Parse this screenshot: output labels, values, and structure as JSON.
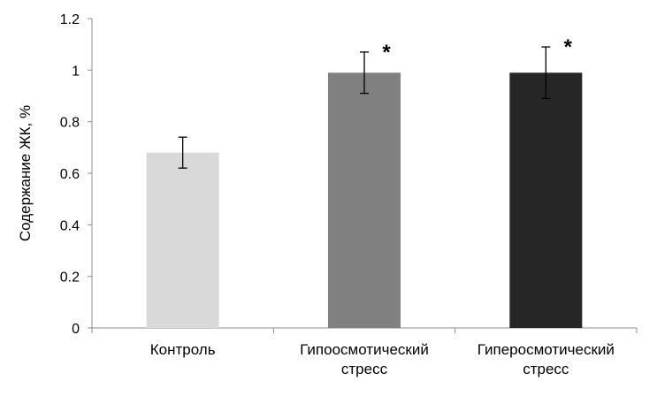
{
  "chart_data": {
    "type": "bar",
    "title": "",
    "xlabel": "",
    "ylabel": "Содержание  ЖК, %",
    "ylim": [
      0,
      1.2
    ],
    "yticks": [
      0,
      0.2,
      0.4,
      0.6,
      0.8,
      1,
      1.2
    ],
    "ytick_labels": [
      "0",
      "0.2",
      "0.4",
      "0.6",
      "0.8",
      "1",
      "1.2"
    ],
    "grid": false,
    "legend": "none",
    "categories": [
      [
        "Контроль"
      ],
      [
        "Гипоосмотический",
        "стресс"
      ],
      [
        "Гиперосмотический",
        "стресс"
      ]
    ],
    "values": [
      0.68,
      0.99,
      0.99
    ],
    "error": [
      0.06,
      0.08,
      0.1
    ],
    "significance": [
      "",
      "*",
      "*"
    ],
    "bar_colors": [
      "#d9d9d9",
      "#808080",
      "#262626"
    ]
  }
}
